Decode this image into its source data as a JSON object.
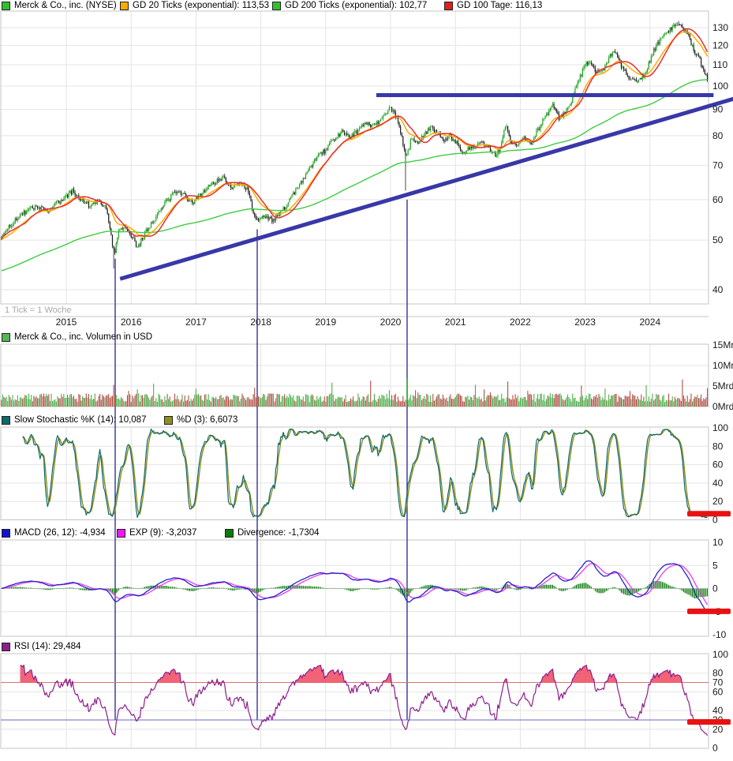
{
  "tick_note": "1 Tick = 1 Woche",
  "legends": {
    "main": [
      {
        "label": "Merck & Co., inc. (NYSE)",
        "color": "#2fc12f"
      },
      {
        "label": "GD 20 Ticks (exponential): 113,53",
        "color": "#ffab00"
      },
      {
        "label": "GD 200 Ticks (exponential): 102,77",
        "color": "#2fc12f"
      },
      {
        "label": "GD 100 Tage: 116,13",
        "color": "#e01f1f"
      }
    ],
    "volume": [
      {
        "label": "Merck & Co., inc. Volumen in USD",
        "color": "#57b557"
      }
    ],
    "stochastic": [
      {
        "label": "Slow Stochastic %K (14): 10,087",
        "color": "#0f6a6d"
      },
      {
        "label": "%D (3): 6,6073",
        "color": "#8f8f1f"
      }
    ],
    "macd": [
      {
        "label": "MACD (26, 12): -4,934",
        "color": "#1414cc"
      },
      {
        "label": "EXP (9): -3,2037",
        "color": "#f019f0"
      },
      {
        "label": "Divergence: -1,7304",
        "color": "#0c7a0c"
      }
    ],
    "rsi": [
      {
        "label": "RSI (14): 29,484",
        "color": "#8c1f8c"
      }
    ]
  },
  "axes": {
    "years": [
      "2015",
      "2016",
      "2017",
      "2018",
      "2019",
      "2020",
      "2021",
      "2022",
      "2023",
      "2024"
    ],
    "price_ticks": [
      40,
      50,
      60,
      70,
      80,
      90,
      100,
      110,
      120,
      130
    ],
    "volume_ticks": [
      {
        "v": 15,
        "label": "15Mrd"
      },
      {
        "v": 10,
        "label": "10Mrd"
      },
      {
        "v": 5,
        "label": "5Mrd"
      },
      {
        "v": 0,
        "label": "0Mrd"
      }
    ],
    "stoch_ticks": [
      100,
      80,
      60,
      40,
      20,
      0
    ],
    "macd_ticks": [
      10,
      5,
      0,
      -5,
      -10
    ],
    "rsi_ticks": [
      {
        "v": 100,
        "label": "100",
        "color": "#1a1a1a"
      },
      {
        "v": 80,
        "label": "80",
        "color": "#1a1a1a"
      },
      {
        "v": 70,
        "label": "70",
        "color": "#e07070"
      },
      {
        "v": 60,
        "label": "60",
        "color": "#1a1a1a"
      },
      {
        "v": 40,
        "label": "40",
        "color": "#1a1a1a"
      },
      {
        "v": 30,
        "label": "30",
        "color": "#6767c8"
      },
      {
        "v": 20,
        "label": "20",
        "color": "#1a1a1a"
      },
      {
        "v": 0,
        "label": "0",
        "color": "#1a1a1a"
      }
    ]
  },
  "chart_data": [
    {
      "type": "candlestick",
      "title": "Merck & Co., inc. (NYSE)",
      "interval": "weekly",
      "tick_note": "1 Tick = 1 Woche",
      "y_scale": "log",
      "ylim": [
        37,
        141
      ],
      "x_range_years": [
        2014.0,
        2024.9
      ],
      "weekly_close_anchors": [
        [
          2014.0,
          50.5
        ],
        [
          2014.12,
          53
        ],
        [
          2014.25,
          55.5
        ],
        [
          2014.4,
          57
        ],
        [
          2014.55,
          58.5
        ],
        [
          2014.7,
          57
        ],
        [
          2014.85,
          59
        ],
        [
          2015.0,
          61
        ],
        [
          2015.1,
          62.5
        ],
        [
          2015.22,
          60
        ],
        [
          2015.35,
          58.5
        ],
        [
          2015.5,
          60
        ],
        [
          2015.62,
          57.5
        ],
        [
          2015.7,
          50
        ],
        [
          2015.74,
          47
        ],
        [
          2015.82,
          52.5
        ],
        [
          2015.9,
          53.5
        ],
        [
          2016.0,
          51
        ],
        [
          2016.1,
          48.5
        ],
        [
          2016.25,
          52.5
        ],
        [
          2016.4,
          56
        ],
        [
          2016.55,
          59.5
        ],
        [
          2016.7,
          62.5
        ],
        [
          2016.82,
          61
        ],
        [
          2016.95,
          59
        ],
        [
          2017.1,
          62
        ],
        [
          2017.25,
          64.5
        ],
        [
          2017.42,
          66
        ],
        [
          2017.55,
          63.5
        ],
        [
          2017.7,
          64.5
        ],
        [
          2017.8,
          63
        ],
        [
          2017.88,
          57
        ],
        [
          2017.95,
          54.5
        ],
        [
          2018.05,
          55.5
        ],
        [
          2018.18,
          54.5
        ],
        [
          2018.3,
          56.5
        ],
        [
          2018.45,
          60
        ],
        [
          2018.6,
          64
        ],
        [
          2018.75,
          69
        ],
        [
          2018.9,
          73.5
        ],
        [
          2019.0,
          75
        ],
        [
          2019.12,
          78.5
        ],
        [
          2019.25,
          81.5
        ],
        [
          2019.38,
          79.5
        ],
        [
          2019.5,
          82
        ],
        [
          2019.62,
          84.5
        ],
        [
          2019.75,
          83.5
        ],
        [
          2019.88,
          87.5
        ],
        [
          2020.0,
          90.5
        ],
        [
          2020.1,
          87
        ],
        [
          2020.18,
          79
        ],
        [
          2020.24,
          72
        ],
        [
          2020.32,
          79
        ],
        [
          2020.42,
          77.5
        ],
        [
          2020.52,
          80.5
        ],
        [
          2020.62,
          83
        ],
        [
          2020.72,
          81
        ],
        [
          2020.82,
          78.5
        ],
        [
          2020.92,
          80
        ],
        [
          2021.02,
          77.5
        ],
        [
          2021.12,
          74
        ],
        [
          2021.25,
          76
        ],
        [
          2021.38,
          77.5
        ],
        [
          2021.5,
          76.5
        ],
        [
          2021.62,
          73
        ],
        [
          2021.7,
          76
        ],
        [
          2021.78,
          84.5
        ],
        [
          2021.86,
          77
        ],
        [
          2021.95,
          76
        ],
        [
          2022.05,
          80
        ],
        [
          2022.15,
          76.5
        ],
        [
          2022.28,
          82.5
        ],
        [
          2022.4,
          88
        ],
        [
          2022.5,
          91.5
        ],
        [
          2022.6,
          86.5
        ],
        [
          2022.7,
          89
        ],
        [
          2022.8,
          94.5
        ],
        [
          2022.9,
          102
        ],
        [
          2023.0,
          110
        ],
        [
          2023.08,
          111.5
        ],
        [
          2023.16,
          107
        ],
        [
          2023.26,
          106
        ],
        [
          2023.36,
          113
        ],
        [
          2023.44,
          117
        ],
        [
          2023.54,
          110.5
        ],
        [
          2023.64,
          105.5
        ],
        [
          2023.74,
          103
        ],
        [
          2023.84,
          102.5
        ],
        [
          2023.94,
          107
        ],
        [
          2024.04,
          116
        ],
        [
          2024.14,
          122
        ],
        [
          2024.24,
          126.5
        ],
        [
          2024.34,
          130
        ],
        [
          2024.44,
          132
        ],
        [
          2024.52,
          129.5
        ],
        [
          2024.6,
          124.5
        ],
        [
          2024.68,
          117.5
        ],
        [
          2024.76,
          113
        ],
        [
          2024.83,
          108
        ],
        [
          2024.88,
          103.5
        ],
        [
          2024.9,
          100
        ]
      ],
      "wick_overrides": [
        [
          2015.74,
          "low",
          44
        ],
        [
          2020.24,
          "low",
          62.5
        ],
        [
          2024.44,
          "high",
          134
        ]
      ],
      "moving_averages": [
        {
          "name": "GD 20 Ticks (exponential)",
          "type": "ema",
          "period": 20,
          "last_value": 113.53,
          "color": "#ffab00"
        },
        {
          "name": "GD 200 Ticks (exponential)",
          "type": "ema",
          "period": 200,
          "last_value": 102.77,
          "color": "#3ecc3e"
        },
        {
          "name": "GD 100 Tage",
          "type": "sma",
          "period_weeks": 20,
          "last_value": 116.13,
          "color": "#e62e2e"
        }
      ],
      "drawings": {
        "color": "#3838a8",
        "horizontal_line": {
          "price": 96,
          "from_year": 2019.78,
          "to_year": 2024.98
        },
        "trendline": {
          "from": [
            2015.83,
            42
          ],
          "to": [
            2025.3,
            94.5
          ]
        },
        "vertical_lines": [
          {
            "year": 2015.754,
            "top_price": 46
          },
          {
            "year": 2017.944,
            "top_price": 52.5
          },
          {
            "year": 2020.255,
            "top_price": 60
          }
        ]
      }
    },
    {
      "type": "bar",
      "title": "Merck & Co., inc. Volumen in USD",
      "unit": "Mrd USD",
      "ylim": [
        0,
        15
      ],
      "baseline_range": [
        1.1,
        3.2
      ],
      "spikes": [
        [
          2015.74,
          5.3
        ],
        [
          2016.1,
          4.2
        ],
        [
          2016.35,
          5.6
        ],
        [
          2017.0,
          4.4
        ],
        [
          2017.9,
          4.6
        ],
        [
          2019.1,
          5.8
        ],
        [
          2019.7,
          6.3
        ],
        [
          2020.25,
          6.9
        ],
        [
          2021.3,
          5.3
        ],
        [
          2021.8,
          6.1
        ],
        [
          2022.95,
          5.1
        ],
        [
          2023.3,
          4.4
        ],
        [
          2023.95,
          5.2
        ],
        [
          2024.5,
          6.6
        ],
        [
          2024.88,
          4.5
        ]
      ]
    },
    {
      "type": "line",
      "title": "Slow Stochastic",
      "k_period": 14,
      "k_smoothing": 3,
      "d_period": 3,
      "last_k": 10.087,
      "last_d": 6.6073,
      "ylim": [
        0,
        100
      ],
      "colors": {
        "k": "#0f6a6d",
        "d": "#8f8f1f"
      }
    },
    {
      "type": "line",
      "title": "MACD",
      "fast": 12,
      "slow": 26,
      "signal": 9,
      "last_macd": -4.934,
      "last_signal": -3.2037,
      "last_divergence": -1.7304,
      "ylim": [
        -10,
        10
      ],
      "colors": {
        "macd": "#2424c8",
        "signal": "#e83ce8",
        "divergence": "#0c7a0c"
      }
    },
    {
      "type": "line",
      "title": "RSI",
      "period": 14,
      "last": 29.484,
      "overbought": 70,
      "oversold": 30,
      "ylim": [
        0,
        100
      ],
      "colors": {
        "rsi": "#8c1f8c",
        "overbought_line": "#e07070",
        "oversold_line": "#6767c8",
        "overbought_fill": "#f04860"
      }
    }
  ]
}
